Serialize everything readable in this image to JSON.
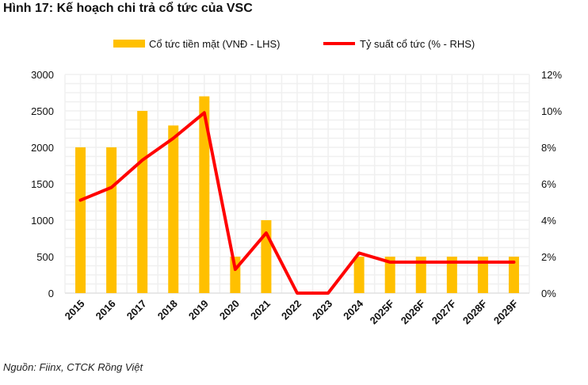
{
  "title": "Hình 17: Kế hoạch chi trả cổ tức của VSC",
  "source": "Nguồn: Fiinx, CTCK Rồng Việt",
  "chart_data": {
    "type": "bar+line",
    "categories": [
      "2015",
      "2016",
      "2017",
      "2018",
      "2019",
      "2020",
      "2021",
      "2022",
      "2023",
      "2024",
      "2025F",
      "2026F",
      "2027F",
      "2028F",
      "2029F"
    ],
    "series": [
      {
        "name": "Cổ tức tiền mặt (VNĐ - LHS)",
        "type": "bar",
        "axis": "left",
        "color": "#FFC000",
        "values": [
          2000,
          2000,
          2500,
          2300,
          2700,
          500,
          1000,
          0,
          0,
          500,
          500,
          500,
          500,
          500,
          500
        ]
      },
      {
        "name": "Tỷ suất cổ tức (% - RHS)",
        "type": "line",
        "axis": "right",
        "color": "#FF0000",
        "values": [
          5.1,
          5.8,
          7.3,
          8.5,
          9.9,
          1.3,
          3.3,
          0,
          0,
          2.2,
          1.7,
          1.7,
          1.7,
          1.7,
          1.7
        ]
      }
    ],
    "ylim_left": [
      0,
      3000
    ],
    "yticks_left": [
      "0",
      "500",
      "1000",
      "1500",
      "2000",
      "2500",
      "3000"
    ],
    "ylim_right": [
      0,
      12
    ],
    "yticks_right": [
      "0%",
      "2%",
      "4%",
      "6%",
      "8%",
      "10%",
      "12%"
    ],
    "legend_position": "top",
    "grid": true
  }
}
